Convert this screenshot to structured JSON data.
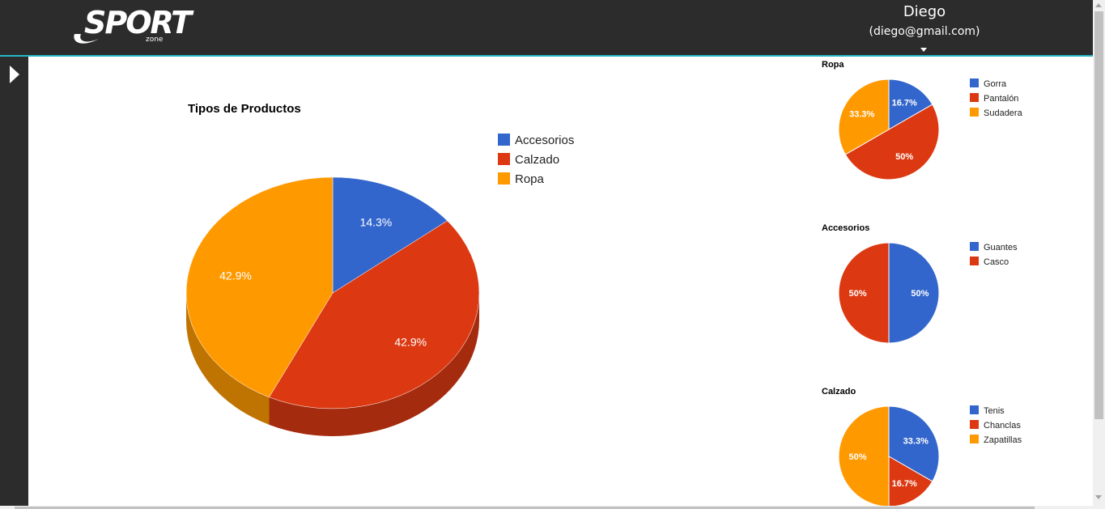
{
  "header": {
    "logo_text": "SPORT",
    "logo_subtext": "zone",
    "user_name": "Diego",
    "user_email": "(diego@gmail.com)"
  },
  "colors": {
    "topbar": "#2c2c2c",
    "accent_line": "#29b6c6",
    "blue": "#3366cc",
    "red": "#dc3912",
    "orange": "#ff9900"
  },
  "chart_data": [
    {
      "type": "pie",
      "title": "Tipos de Productos",
      "categories": [
        "Accesorios",
        "Calzado",
        "Ropa"
      ],
      "values": [
        14.3,
        42.9,
        42.9
      ],
      "labels": [
        "14.3%",
        "42.9%",
        "42.9%"
      ],
      "colors": [
        "#3366cc",
        "#dc3912",
        "#ff9900"
      ],
      "is3D": true,
      "legend": "right"
    },
    {
      "type": "pie",
      "title": "Ropa",
      "categories": [
        "Gorra",
        "Pantalón",
        "Sudadera"
      ],
      "values": [
        16.7,
        50,
        33.3
      ],
      "labels": [
        "16.7%",
        "50%",
        "33.3%"
      ],
      "colors": [
        "#3366cc",
        "#dc3912",
        "#ff9900"
      ],
      "legend": "right"
    },
    {
      "type": "pie",
      "title": "Accesorios",
      "categories": [
        "Guantes",
        "Casco"
      ],
      "values": [
        50,
        50
      ],
      "labels": [
        "50%",
        "50%"
      ],
      "colors": [
        "#3366cc",
        "#dc3912"
      ],
      "legend": "right"
    },
    {
      "type": "pie",
      "title": "Calzado",
      "categories": [
        "Tenis",
        "Chanclas",
        "Zapatillas"
      ],
      "values": [
        33.3,
        16.7,
        50
      ],
      "labels": [
        "33.3%",
        "16.7%",
        "50%"
      ],
      "colors": [
        "#3366cc",
        "#dc3912",
        "#ff9900"
      ],
      "legend": "right"
    }
  ]
}
